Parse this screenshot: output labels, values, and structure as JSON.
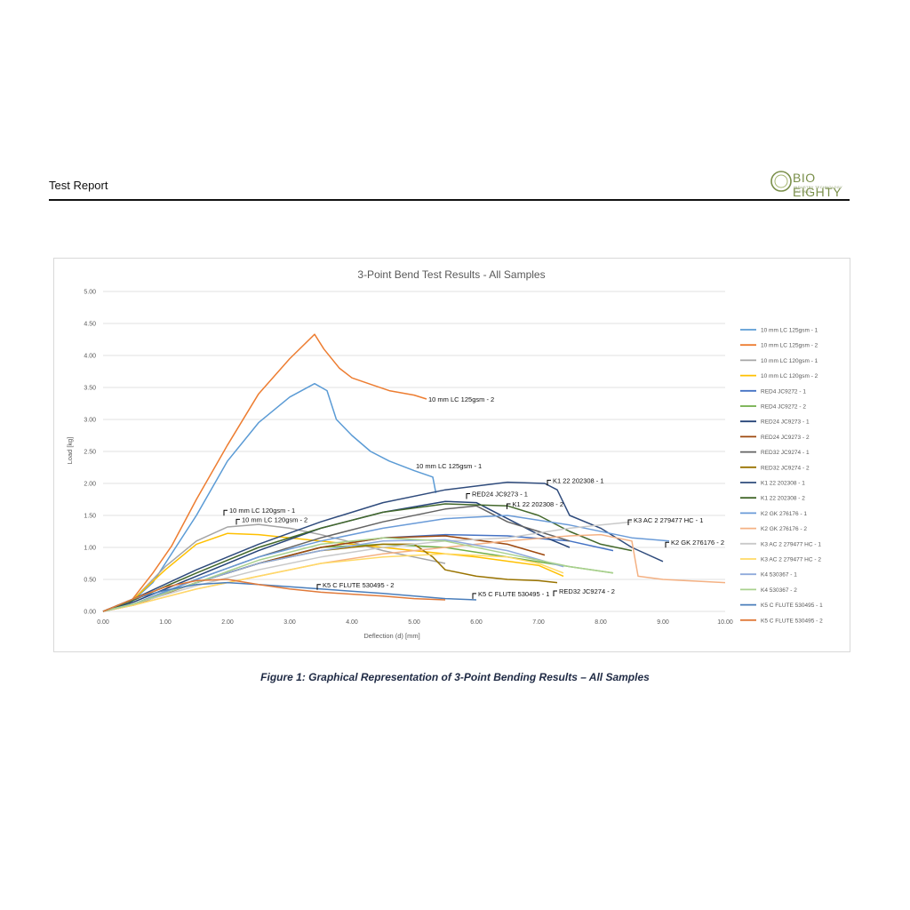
{
  "header": {
    "title": "Test Report",
    "logo_text": "BIO EIGHTY",
    "logo_sub": "INDUSTRY TECHNOLOGY PARTNER"
  },
  "figure": {
    "caption": "Figure 1: Graphical Representation of 3-Point Bending Results – All Samples"
  },
  "chart_data": {
    "type": "line",
    "title": "3-Point Bend Test Results - All Samples",
    "xlabel": "Deflection (d) [mm]",
    "ylabel": "Load [kg]",
    "xlim": [
      0,
      10
    ],
    "ylim": [
      0,
      5
    ],
    "x_ticks": [
      "0.00",
      "1.00",
      "2.00",
      "3.00",
      "4.00",
      "5.00",
      "6.00",
      "7.00",
      "8.00",
      "9.00",
      "10.00"
    ],
    "y_ticks": [
      "0.00",
      "0.50",
      "1.00",
      "1.50",
      "2.00",
      "2.50",
      "3.00",
      "3.50",
      "4.00",
      "4.50",
      "5.00"
    ],
    "grid": "horizontal",
    "legend_position": "right",
    "series": [
      {
        "name": "10 mm LC 125gsm - 1",
        "color": "#5b9bd5",
        "points": [
          [
            0,
            0
          ],
          [
            0.4,
            0.1
          ],
          [
            0.8,
            0.45
          ],
          [
            1.2,
            1.05
          ],
          [
            1.5,
            1.5
          ],
          [
            2.0,
            2.35
          ],
          [
            2.5,
            2.95
          ],
          [
            3.0,
            3.35
          ],
          [
            3.4,
            3.56
          ],
          [
            3.6,
            3.45
          ],
          [
            3.75,
            3.0
          ],
          [
            4.0,
            2.75
          ],
          [
            4.3,
            2.5
          ],
          [
            4.6,
            2.35
          ],
          [
            5.0,
            2.2
          ],
          [
            5.3,
            2.1
          ],
          [
            5.35,
            1.85
          ]
        ]
      },
      {
        "name": "10 mm LC 125gsm - 2",
        "color": "#ed7d31",
        "points": [
          [
            0,
            0
          ],
          [
            0.4,
            0.1
          ],
          [
            0.8,
            0.6
          ],
          [
            1.1,
            1.02
          ],
          [
            1.5,
            1.75
          ],
          [
            2.0,
            2.6
          ],
          [
            2.5,
            3.4
          ],
          [
            3.0,
            3.95
          ],
          [
            3.4,
            4.33
          ],
          [
            3.55,
            4.1
          ],
          [
            3.8,
            3.8
          ],
          [
            4.0,
            3.65
          ],
          [
            4.3,
            3.55
          ],
          [
            4.6,
            3.45
          ],
          [
            5.0,
            3.38
          ],
          [
            5.2,
            3.32
          ]
        ]
      },
      {
        "name": "10 mm LC 120gsm - 1",
        "color": "#a5a5a5",
        "points": [
          [
            0,
            0
          ],
          [
            0.5,
            0.2
          ],
          [
            1.0,
            0.7
          ],
          [
            1.5,
            1.1
          ],
          [
            2.0,
            1.32
          ],
          [
            2.5,
            1.36
          ],
          [
            3.0,
            1.3
          ],
          [
            3.5,
            1.2
          ],
          [
            4.0,
            1.08
          ],
          [
            4.5,
            0.95
          ],
          [
            5.0,
            0.85
          ],
          [
            5.5,
            0.75
          ]
        ]
      },
      {
        "name": "10 mm LC 120gsm - 2",
        "color": "#ffc000",
        "points": [
          [
            0,
            0
          ],
          [
            0.5,
            0.2
          ],
          [
            1.0,
            0.65
          ],
          [
            1.5,
            1.05
          ],
          [
            2.0,
            1.22
          ],
          [
            2.5,
            1.2
          ],
          [
            3.0,
            1.15
          ],
          [
            4.0,
            1.05
          ],
          [
            5.0,
            0.95
          ],
          [
            6.0,
            0.85
          ],
          [
            7.0,
            0.72
          ],
          [
            7.4,
            0.55
          ]
        ]
      },
      {
        "name": "RED4 JC9272 - 1",
        "color": "#4472c4",
        "points": [
          [
            0,
            0
          ],
          [
            0.5,
            0.12
          ],
          [
            1.5,
            0.45
          ],
          [
            2.5,
            0.75
          ],
          [
            3.5,
            1.0
          ],
          [
            4.5,
            1.15
          ],
          [
            5.5,
            1.2
          ],
          [
            6.5,
            1.18
          ],
          [
            7.5,
            1.1
          ],
          [
            8.2,
            0.95
          ]
        ]
      },
      {
        "name": "RED4 JC9272 - 2",
        "color": "#70ad47",
        "points": [
          [
            0,
            0
          ],
          [
            0.5,
            0.12
          ],
          [
            1.5,
            0.45
          ],
          [
            2.5,
            0.75
          ],
          [
            3.5,
            1.0
          ],
          [
            4.5,
            1.05
          ],
          [
            5.5,
            1.0
          ],
          [
            6.5,
            0.85
          ],
          [
            7.5,
            0.7
          ],
          [
            8.2,
            0.6
          ]
        ]
      },
      {
        "name": "RED24 JC9273 - 1",
        "color": "#264478",
        "points": [
          [
            0,
            0
          ],
          [
            0.5,
            0.15
          ],
          [
            1.5,
            0.55
          ],
          [
            2.5,
            0.95
          ],
          [
            3.5,
            1.3
          ],
          [
            4.5,
            1.55
          ],
          [
            5.5,
            1.72
          ],
          [
            6.0,
            1.7
          ],
          [
            6.5,
            1.45
          ],
          [
            7.0,
            1.2
          ],
          [
            7.5,
            1.0
          ]
        ]
      },
      {
        "name": "RED24 JC9273 - 2",
        "color": "#9e480e",
        "points": [
          [
            0,
            0
          ],
          [
            0.5,
            0.1
          ],
          [
            1.5,
            0.45
          ],
          [
            2.5,
            0.75
          ],
          [
            3.5,
            1.0
          ],
          [
            4.5,
            1.15
          ],
          [
            5.5,
            1.18
          ],
          [
            6.5,
            1.05
          ],
          [
            7.1,
            0.88
          ]
        ]
      },
      {
        "name": "RED32 JC9274 - 1",
        "color": "#636363",
        "points": [
          [
            0,
            0
          ],
          [
            0.5,
            0.12
          ],
          [
            1.5,
            0.5
          ],
          [
            2.5,
            0.85
          ],
          [
            3.5,
            1.15
          ],
          [
            4.5,
            1.4
          ],
          [
            5.5,
            1.6
          ],
          [
            6.0,
            1.65
          ],
          [
            6.5,
            1.4
          ],
          [
            7.0,
            1.25
          ],
          [
            7.5,
            1.1
          ]
        ]
      },
      {
        "name": "RED32 JC9274 - 2",
        "color": "#997300",
        "points": [
          [
            0,
            0
          ],
          [
            0.5,
            0.12
          ],
          [
            1.5,
            0.45
          ],
          [
            2.5,
            0.75
          ],
          [
            3.5,
            0.95
          ],
          [
            4.5,
            1.05
          ],
          [
            5.0,
            1.05
          ],
          [
            5.3,
            0.85
          ],
          [
            5.5,
            0.65
          ],
          [
            6.0,
            0.55
          ],
          [
            6.5,
            0.5
          ],
          [
            7.0,
            0.48
          ],
          [
            7.3,
            0.45
          ]
        ]
      },
      {
        "name": "K1 22 202308 - 1",
        "color": "#2f4b7c",
        "points": [
          [
            0,
            0
          ],
          [
            0.5,
            0.2
          ],
          [
            1.5,
            0.65
          ],
          [
            2.5,
            1.05
          ],
          [
            3.5,
            1.4
          ],
          [
            4.5,
            1.7
          ],
          [
            5.5,
            1.9
          ],
          [
            6.5,
            2.02
          ],
          [
            7.1,
            2.0
          ],
          [
            7.3,
            1.9
          ],
          [
            7.5,
            1.5
          ],
          [
            8.0,
            1.3
          ],
          [
            8.5,
            1.0
          ],
          [
            9.0,
            0.78
          ]
        ]
      },
      {
        "name": "K1 22 202308 - 2",
        "color": "#43682b",
        "points": [
          [
            0,
            0
          ],
          [
            0.5,
            0.18
          ],
          [
            1.5,
            0.6
          ],
          [
            2.5,
            1.0
          ],
          [
            3.5,
            1.3
          ],
          [
            4.5,
            1.55
          ],
          [
            5.5,
            1.68
          ],
          [
            6.5,
            1.65
          ],
          [
            7.0,
            1.5
          ],
          [
            7.5,
            1.25
          ],
          [
            8.0,
            1.05
          ],
          [
            8.5,
            0.95
          ]
        ]
      },
      {
        "name": "K2 GK 276176 - 1",
        "color": "#6a9bd8",
        "points": [
          [
            0,
            0
          ],
          [
            0.5,
            0.12
          ],
          [
            1.5,
            0.5
          ],
          [
            2.5,
            0.85
          ],
          [
            3.5,
            1.1
          ],
          [
            4.5,
            1.3
          ],
          [
            5.5,
            1.45
          ],
          [
            6.5,
            1.5
          ],
          [
            7.5,
            1.35
          ],
          [
            8.5,
            1.15
          ],
          [
            9.1,
            1.1
          ]
        ]
      },
      {
        "name": "K2 GK 276176 - 2",
        "color": "#f4b183",
        "points": [
          [
            0,
            0
          ],
          [
            0.5,
            0.1
          ],
          [
            1.5,
            0.35
          ],
          [
            2.5,
            0.55
          ],
          [
            3.5,
            0.75
          ],
          [
            4.5,
            0.9
          ],
          [
            5.5,
            1.0
          ],
          [
            6.5,
            1.1
          ],
          [
            7.5,
            1.18
          ],
          [
            8.0,
            1.2
          ],
          [
            8.5,
            1.1
          ],
          [
            8.6,
            0.55
          ],
          [
            9.0,
            0.5
          ],
          [
            10.0,
            0.45
          ]
        ]
      },
      {
        "name": "K3 AC 2 279477 HC - 1",
        "color": "#c9c9c9",
        "points": [
          [
            0,
            0
          ],
          [
            0.5,
            0.12
          ],
          [
            1.5,
            0.4
          ],
          [
            2.5,
            0.65
          ],
          [
            3.5,
            0.85
          ],
          [
            4.5,
            1.0
          ],
          [
            5.5,
            1.1
          ],
          [
            6.5,
            1.15
          ],
          [
            7.5,
            1.3
          ],
          [
            8.0,
            1.35
          ],
          [
            8.5,
            1.4
          ]
        ]
      },
      {
        "name": "K3 AC 2 279477 HC - 2",
        "color": "#ffd966",
        "points": [
          [
            0,
            0
          ],
          [
            0.5,
            0.1
          ],
          [
            1.5,
            0.35
          ],
          [
            2.5,
            0.55
          ],
          [
            3.5,
            0.75
          ],
          [
            4.5,
            0.85
          ],
          [
            5.5,
            0.9
          ],
          [
            6.5,
            0.85
          ],
          [
            7.0,
            0.75
          ],
          [
            7.4,
            0.6
          ]
        ]
      },
      {
        "name": "K4 530367 - 1",
        "color": "#8faadc",
        "points": [
          [
            0,
            0
          ],
          [
            0.5,
            0.12
          ],
          [
            1.5,
            0.45
          ],
          [
            2.5,
            0.75
          ],
          [
            3.5,
            0.95
          ],
          [
            4.5,
            1.1
          ],
          [
            5.5,
            1.12
          ],
          [
            6.5,
            0.95
          ],
          [
            7.4,
            0.7
          ]
        ]
      },
      {
        "name": "K4 530367 - 2",
        "color": "#a9d18e",
        "points": [
          [
            0,
            0
          ],
          [
            0.5,
            0.12
          ],
          [
            1.5,
            0.45
          ],
          [
            2.5,
            0.8
          ],
          [
            3.5,
            1.05
          ],
          [
            4.5,
            1.15
          ],
          [
            5.5,
            1.1
          ],
          [
            6.5,
            0.9
          ],
          [
            7.5,
            0.7
          ],
          [
            8.2,
            0.6
          ]
        ]
      },
      {
        "name": "K5 C FLUTE 530495 - 1",
        "color": "#4a7ebb",
        "points": [
          [
            0,
            0
          ],
          [
            0.5,
            0.2
          ],
          [
            1.0,
            0.33
          ],
          [
            1.5,
            0.42
          ],
          [
            2.0,
            0.45
          ],
          [
            2.5,
            0.42
          ],
          [
            3.5,
            0.35
          ],
          [
            4.5,
            0.28
          ],
          [
            5.5,
            0.2
          ],
          [
            6.0,
            0.18
          ]
        ]
      },
      {
        "name": "K5 C FLUTE 530495 - 2",
        "color": "#e07a3a",
        "points": [
          [
            0,
            0
          ],
          [
            0.5,
            0.2
          ],
          [
            1.0,
            0.38
          ],
          [
            1.5,
            0.48
          ],
          [
            2.0,
            0.5
          ],
          [
            2.5,
            0.42
          ],
          [
            3.0,
            0.35
          ],
          [
            3.5,
            0.3
          ],
          [
            4.0,
            0.27
          ],
          [
            4.5,
            0.24
          ],
          [
            5.0,
            0.2
          ],
          [
            5.5,
            0.18
          ]
        ]
      }
    ],
    "annotations": [
      {
        "text": "10 mm LC 125gsm - 2",
        "x": 5.2,
        "y": 3.32,
        "leader": false
      },
      {
        "text": "10 mm LC 125gsm - 1",
        "x": 5.0,
        "y": 2.28,
        "leader": false
      },
      {
        "text": "10 mm LC 120gsm - 1",
        "x": 2.0,
        "y": 1.58,
        "leader": true
      },
      {
        "text": "10 mm LC 120gsm - 2",
        "x": 2.2,
        "y": 1.44,
        "leader": true
      },
      {
        "text": "K1 22 202308 - 1",
        "x": 7.2,
        "y": 2.05,
        "leader": true
      },
      {
        "text": "RED24 JC9273 - 1",
        "x": 5.9,
        "y": 1.84,
        "leader": true
      },
      {
        "text": "K1 22 202308 - 2",
        "x": 6.55,
        "y": 1.68,
        "leader": true
      },
      {
        "text": "K3 AC 2 279477 HC - 1",
        "x": 8.5,
        "y": 1.43,
        "leader": true
      },
      {
        "text": "K2 GK 276176 - 2",
        "x": 9.1,
        "y": 1.08,
        "leader": true
      },
      {
        "text": "K5 C FLUTE 530495 - 2",
        "x": 3.5,
        "y": 0.42,
        "leader": true
      },
      {
        "text": "K5 C FLUTE 530495 - 1",
        "x": 6.0,
        "y": 0.28,
        "leader": true
      },
      {
        "text": "RED32 JC9274 - 2",
        "x": 7.3,
        "y": 0.32,
        "leader": true
      }
    ]
  }
}
